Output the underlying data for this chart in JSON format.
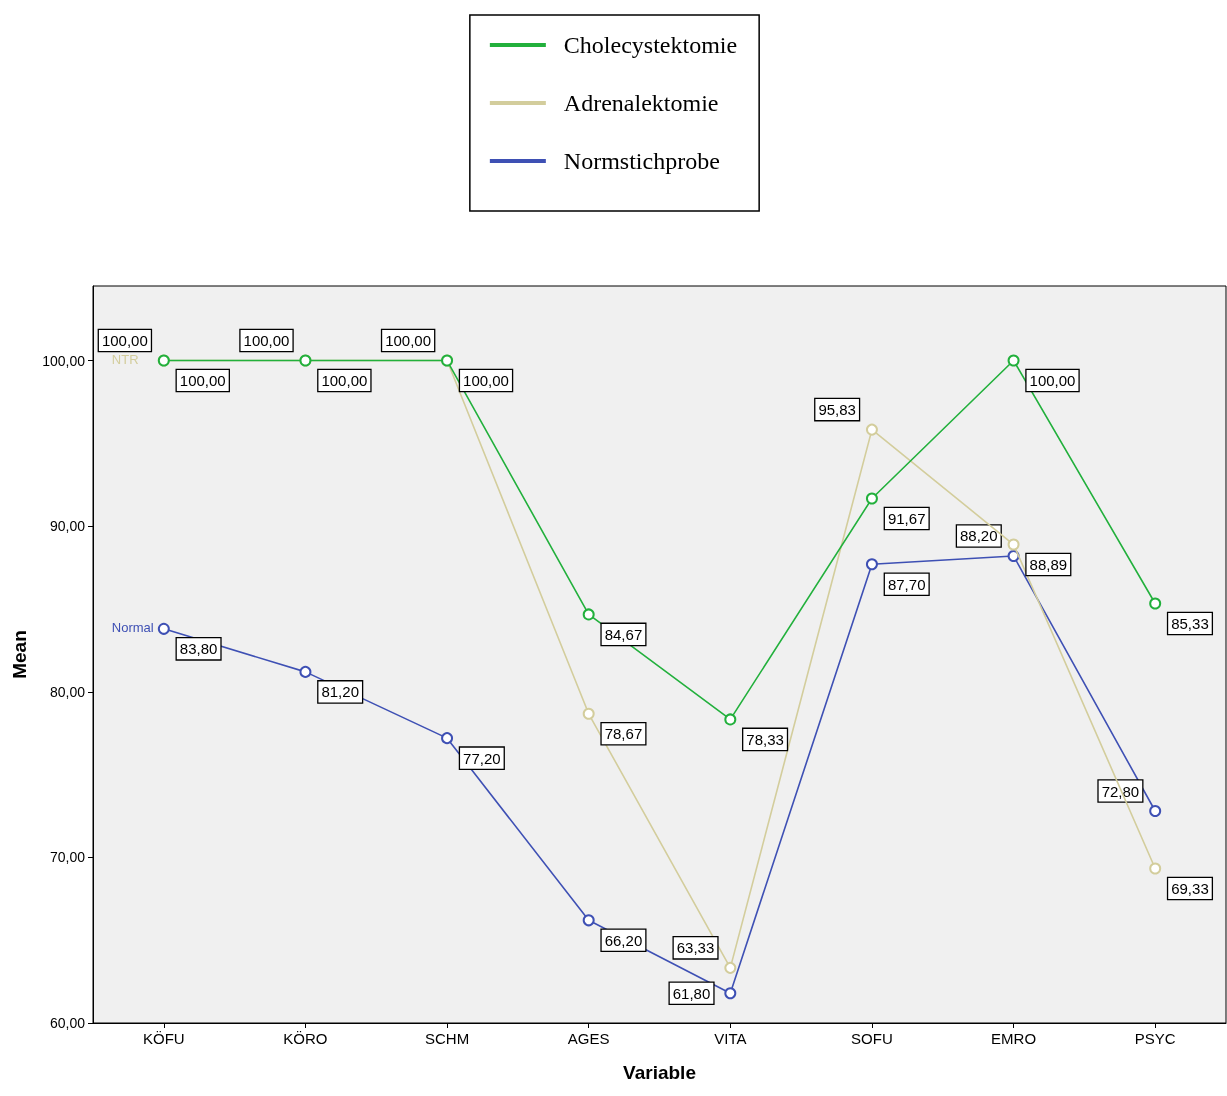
{
  "chart_data": {
    "type": "line",
    "xlabel": "Variable",
    "ylabel": "Mean",
    "categories": [
      "KÖFU",
      "KÖRO",
      "SCHM",
      "AGES",
      "VITA",
      "SOFU",
      "EMRO",
      "PSYC"
    ],
    "series": [
      {
        "name": "Cholecystektomie",
        "color": "#22b03c",
        "values": [
          100,
          100,
          100,
          84.67,
          78.33,
          91.67,
          100,
          85.33
        ],
        "value_labels": [
          "100,00",
          "100,00",
          "100,00",
          "84,67",
          "78,33",
          "91,67",
          "100,00",
          "85,33"
        ]
      },
      {
        "name": "Adrenalektomie",
        "color": "#d3cd9c",
        "values": [
          100,
          100,
          100,
          78.67,
          63.33,
          95.83,
          88.89,
          69.33
        ],
        "value_labels": [
          "100,00",
          "100,00",
          "100,00",
          "78,67",
          "63,33",
          "95,83",
          "88,89",
          "69,33"
        ]
      },
      {
        "name": "Normstichprobe",
        "color": "#3e50b4",
        "values": [
          83.8,
          81.2,
          77.2,
          66.2,
          61.8,
          87.7,
          88.2,
          72.8
        ],
        "value_labels": [
          "83,80",
          "81,20",
          "77,20",
          "66,20",
          "61,80",
          "87,70",
          "88,20",
          "72,80"
        ]
      }
    ],
    "ylim": [
      60,
      104.5
    ],
    "yticks": [
      {
        "value": 60,
        "label": "60,00"
      },
      {
        "value": 70,
        "label": "70,00"
      },
      {
        "value": 80,
        "label": "80,00"
      },
      {
        "value": 90,
        "label": "90,00"
      },
      {
        "value": 100,
        "label": "100,00"
      }
    ],
    "annotations": [
      {
        "text": "Normal",
        "x": "KÖFU",
        "y": 83.8
      },
      {
        "text": "NTR",
        "x": "KÖFU",
        "y": 100
      }
    ],
    "marker": "circle",
    "line_style": "solid",
    "grid": false,
    "legend": "top"
  }
}
